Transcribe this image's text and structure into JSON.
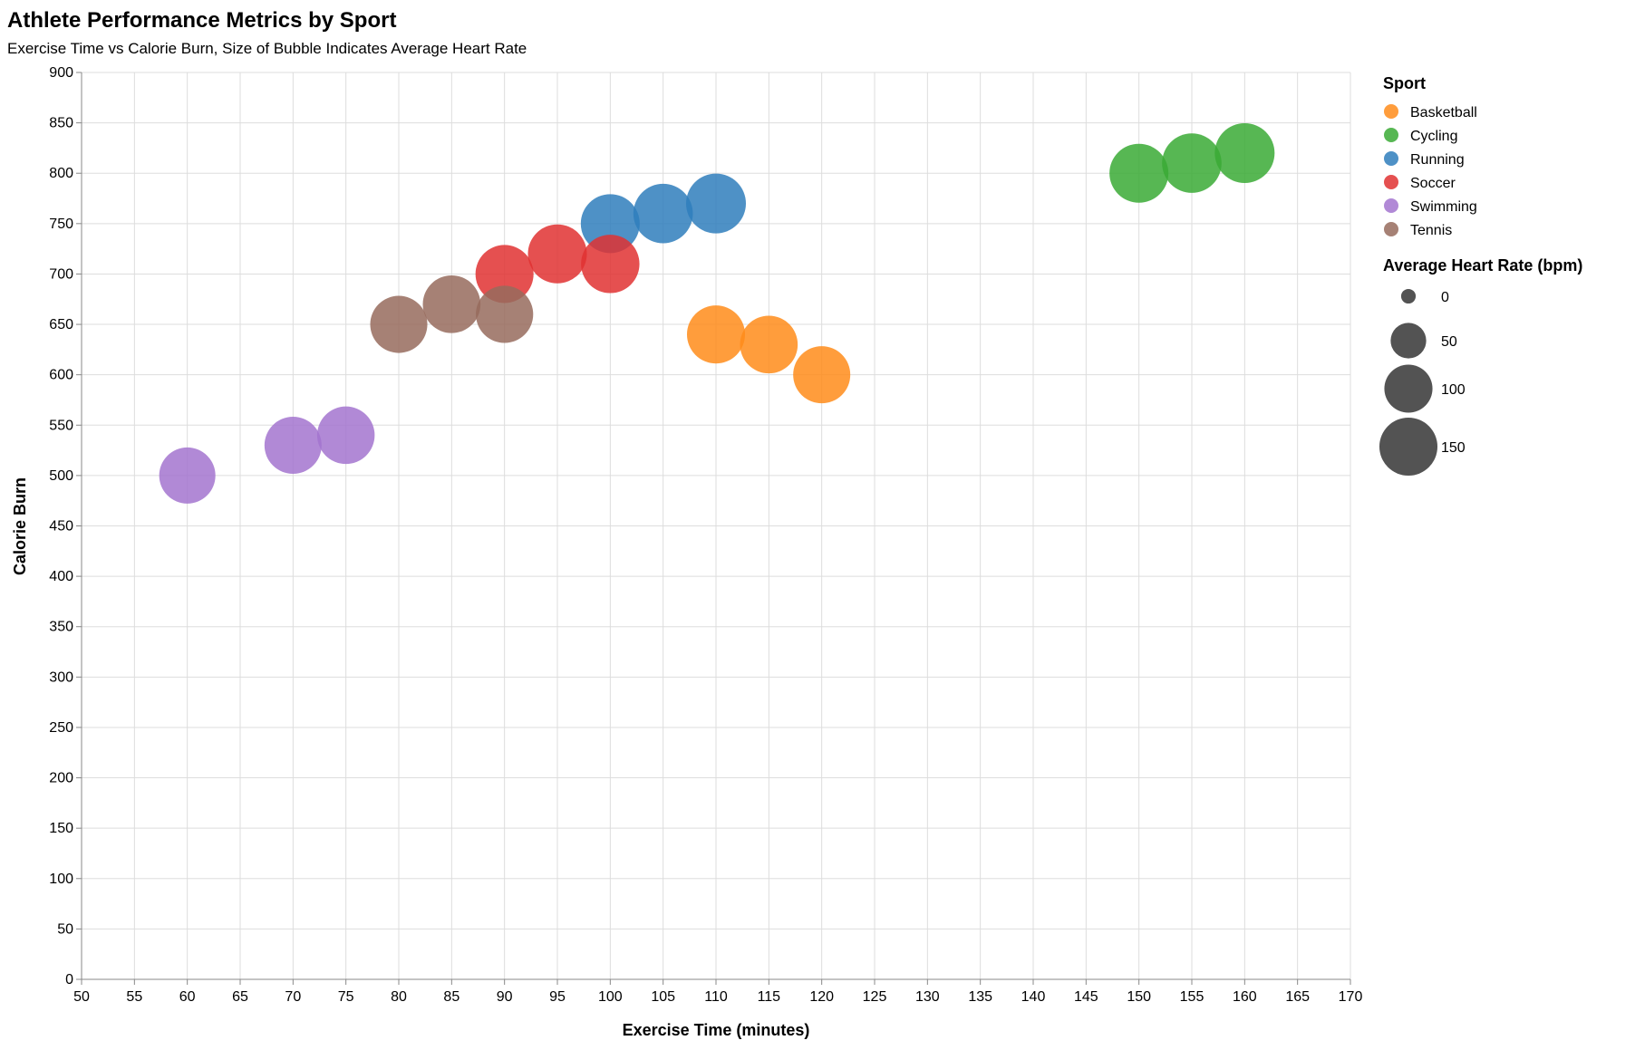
{
  "chart_data": {
    "type": "scatter",
    "title": "Athlete Performance Metrics by Sport",
    "subtitle": "Exercise Time vs Calorie Burn, Size of Bubble Indicates Average Heart Rate",
    "xlabel": "Exercise Time (minutes)",
    "ylabel": "Calorie Burn",
    "xlim": [
      50,
      170
    ],
    "ylim": [
      0,
      900
    ],
    "x_ticks": [
      50,
      55,
      60,
      65,
      70,
      75,
      80,
      85,
      90,
      95,
      100,
      105,
      110,
      115,
      120,
      125,
      130,
      135,
      140,
      145,
      150,
      155,
      160,
      165,
      170
    ],
    "y_ticks": [
      0,
      50,
      100,
      150,
      200,
      250,
      300,
      350,
      400,
      450,
      500,
      550,
      600,
      650,
      700,
      750,
      800,
      850,
      900
    ],
    "grid": true,
    "color_legend": {
      "title": "Sport",
      "placement": "top-right",
      "entries": [
        {
          "name": "Basketball",
          "color": "#ff8c1a"
        },
        {
          "name": "Cycling",
          "color": "#3aaa35"
        },
        {
          "name": "Running",
          "color": "#2f7ebc"
        },
        {
          "name": "Soccer",
          "color": "#e03131"
        },
        {
          "name": "Swimming",
          "color": "#a374cf"
        },
        {
          "name": "Tennis",
          "color": "#966b5d"
        }
      ]
    },
    "size_legend": {
      "title": "Average Heart Rate (bpm)",
      "values": [
        0,
        50,
        100,
        150
      ],
      "labels": [
        "0",
        "50",
        "100",
        "150"
      ],
      "color": "#4a4a4a"
    },
    "series": [
      {
        "name": "Basketball",
        "points": [
          {
            "x": 110,
            "y": 640,
            "hr": 150
          },
          {
            "x": 115,
            "y": 630,
            "hr": 148
          },
          {
            "x": 120,
            "y": 600,
            "hr": 145
          }
        ]
      },
      {
        "name": "Cycling",
        "points": [
          {
            "x": 150,
            "y": 800,
            "hr": 155
          },
          {
            "x": 155,
            "y": 810,
            "hr": 158
          },
          {
            "x": 160,
            "y": 820,
            "hr": 160
          }
        ]
      },
      {
        "name": "Running",
        "points": [
          {
            "x": 100,
            "y": 750,
            "hr": 155
          },
          {
            "x": 105,
            "y": 760,
            "hr": 158
          },
          {
            "x": 110,
            "y": 770,
            "hr": 160
          }
        ]
      },
      {
        "name": "Soccer",
        "points": [
          {
            "x": 90,
            "y": 700,
            "hr": 150
          },
          {
            "x": 95,
            "y": 720,
            "hr": 155
          },
          {
            "x": 100,
            "y": 710,
            "hr": 152
          }
        ]
      },
      {
        "name": "Swimming",
        "points": [
          {
            "x": 60,
            "y": 500,
            "hr": 140
          },
          {
            "x": 70,
            "y": 530,
            "hr": 145
          },
          {
            "x": 75,
            "y": 540,
            "hr": 147
          }
        ]
      },
      {
        "name": "Tennis",
        "points": [
          {
            "x": 80,
            "y": 650,
            "hr": 145
          },
          {
            "x": 85,
            "y": 670,
            "hr": 148
          },
          {
            "x": 90,
            "y": 660,
            "hr": 146
          }
        ]
      }
    ]
  }
}
